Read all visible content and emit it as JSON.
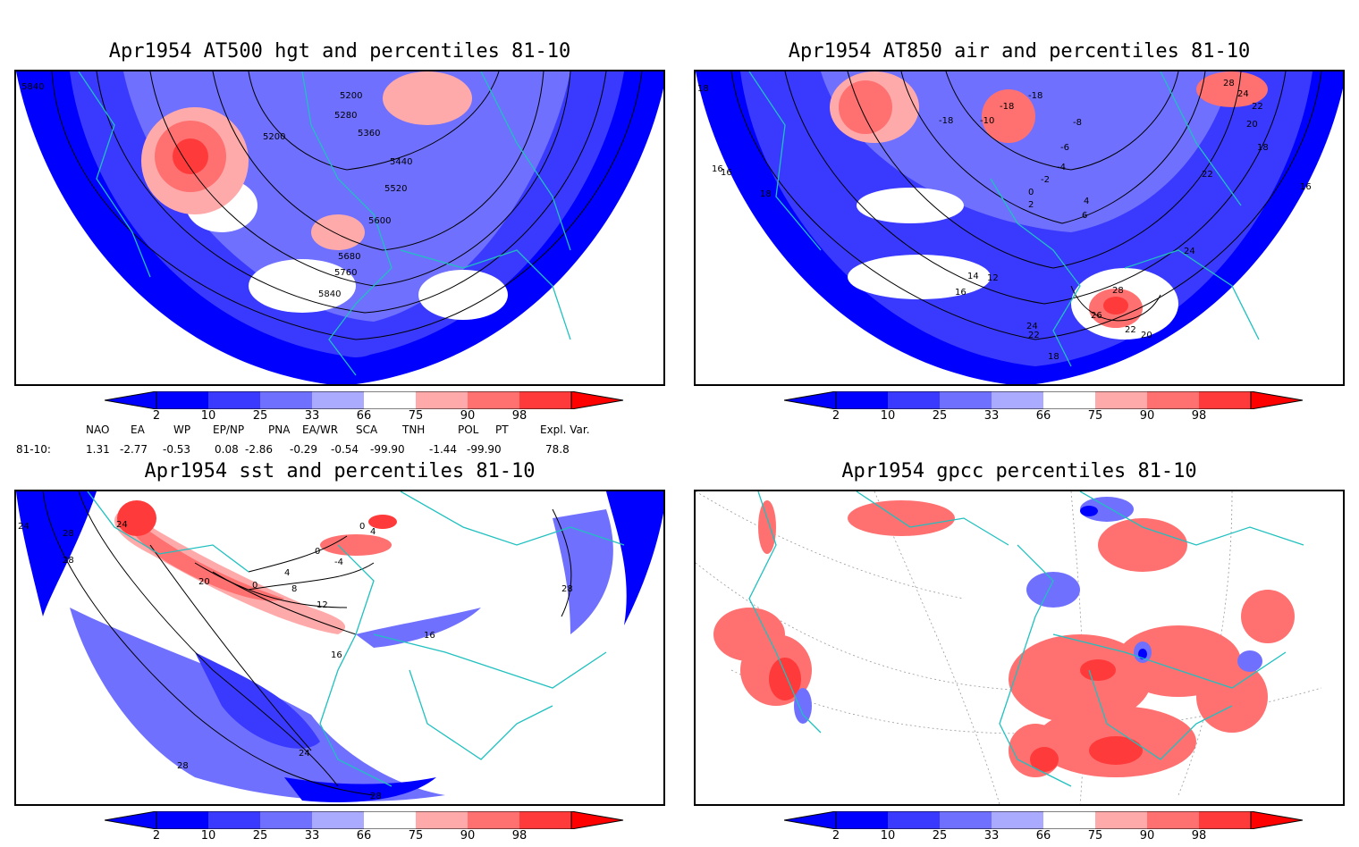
{
  "panels": [
    {
      "title": "Apr1954 AT500 hgt and percentiles 81-10",
      "contour_labels": [
        "5840",
        "5200",
        "5280",
        "5360",
        "5200",
        "5440",
        "5520",
        "5600",
        "5680",
        "5760",
        "5840"
      ]
    },
    {
      "title": "Apr1954 AT850 air and percentiles 81-10",
      "contour_labels": [
        "16",
        "18",
        "-18",
        "-18",
        "-10",
        "-18",
        "-8",
        "-6",
        "-4",
        "-2",
        "0",
        "2",
        "4",
        "6",
        "28",
        "24",
        "22",
        "20",
        "18",
        "16",
        "16",
        "18",
        "22",
        "24",
        "14",
        "12",
        "16",
        "28",
        "26",
        "24",
        "22",
        "22",
        "20",
        "18"
      ]
    },
    {
      "title": "Apr1954 sst and percentiles 81-10",
      "contour_labels": [
        "24",
        "28",
        "28",
        "24",
        "20",
        "0",
        "4",
        "8",
        "12",
        "0",
        "-4",
        "0",
        "4",
        "16",
        "16",
        "28",
        "24",
        "28",
        "28"
      ]
    },
    {
      "title": "Apr1954 gpcc percentiles 81-10",
      "contour_labels": []
    }
  ],
  "colorbar": {
    "ticks": [
      "2",
      "10",
      "25",
      "33",
      "66",
      "75",
      "90",
      "98"
    ],
    "colors": [
      "#0000ff",
      "#3a3aff",
      "#7070ff",
      "#aaaaff",
      "#ffffff",
      "#ffaaaa",
      "#ff7070",
      "#ff3a3a",
      "#ff0000"
    ]
  },
  "indices": {
    "row_label": "81-10:",
    "headers": [
      "NAO",
      "EA",
      "WP",
      "EP/NP",
      "PNA",
      "EA/WR",
      "SCA",
      "TNH",
      "POL",
      "PT",
      "Expl. Var."
    ],
    "values": [
      "1.31",
      "-2.77",
      "-0.53",
      "0.08",
      "-2.86",
      "-0.29",
      "-0.54",
      "-99.90",
      "-1.44",
      "-99.90",
      "78.8"
    ]
  },
  "colors": {
    "coast": "#20c0c0",
    "contour": "#000000"
  }
}
